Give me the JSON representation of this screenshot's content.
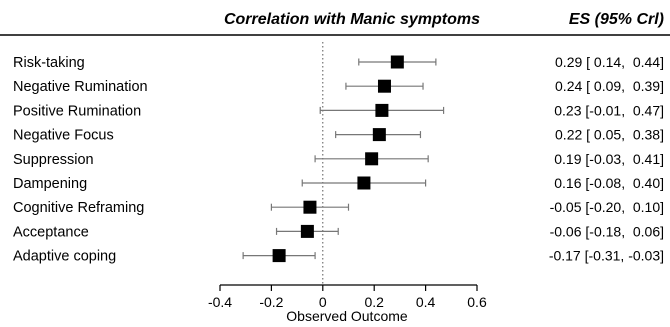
{
  "chart_data": {
    "type": "forest",
    "title": "Correlation with Manic symptoms",
    "es_header": "ES (95% Crl)",
    "xlabel": "Observed Outcome",
    "xlim": [
      -0.4,
      0.6
    ],
    "ticks": [
      -0.4,
      -0.2,
      0,
      0.2,
      0.4,
      0.6
    ],
    "tick_labels": [
      "-0.4",
      "-0.2",
      "0",
      "0.2",
      "0.4",
      "0.6"
    ],
    "reference_line": 0,
    "rows": [
      {
        "label": "Risk-taking",
        "es": 0.29,
        "lo": 0.14,
        "hi": 0.44,
        "es_text": "0.29 [ 0.14,  0.44]"
      },
      {
        "label": "Negative Rumination",
        "es": 0.24,
        "lo": 0.09,
        "hi": 0.39,
        "es_text": "0.24 [ 0.09,  0.39]"
      },
      {
        "label": "Positive Rumination",
        "es": 0.23,
        "lo": -0.01,
        "hi": 0.47,
        "es_text": "0.23 [-0.01,  0.47]"
      },
      {
        "label": "Negative Focus",
        "es": 0.22,
        "lo": 0.05,
        "hi": 0.38,
        "es_text": "0.22 [ 0.05,  0.38]"
      },
      {
        "label": "Suppression",
        "es": 0.19,
        "lo": -0.03,
        "hi": 0.41,
        "es_text": "0.19 [-0.03,  0.41]"
      },
      {
        "label": "Dampening",
        "es": 0.16,
        "lo": -0.08,
        "hi": 0.4,
        "es_text": "0.16 [-0.08,  0.40]"
      },
      {
        "label": "Cognitive Reframing",
        "es": -0.05,
        "lo": -0.2,
        "hi": 0.1,
        "es_text": "-0.05 [-0.20,  0.10]"
      },
      {
        "label": "Acceptance",
        "es": -0.06,
        "lo": -0.18,
        "hi": 0.06,
        "es_text": "-0.06 [-0.18,  0.06]"
      },
      {
        "label": "Adaptive coping",
        "es": -0.17,
        "lo": -0.31,
        "hi": -0.03,
        "es_text": "-0.17 [-0.31, -0.03]"
      }
    ]
  }
}
